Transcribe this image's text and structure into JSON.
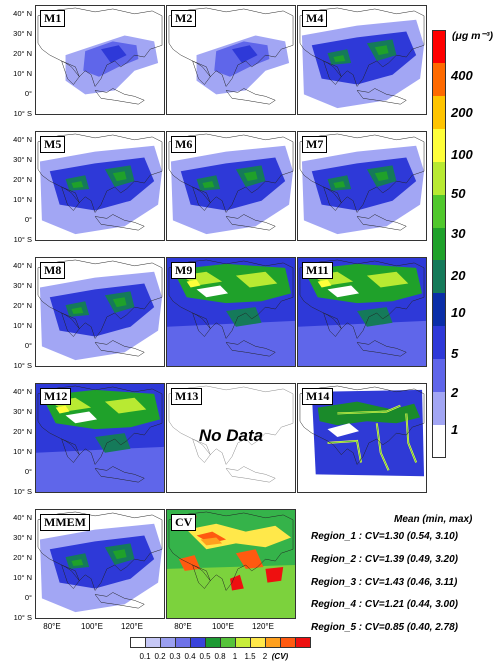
{
  "lat_labels": [
    "40° N",
    "30° N",
    "20° N",
    "10° N",
    "0°",
    "10° S"
  ],
  "lon_labels": [
    "80°E",
    "100°E",
    "120°E"
  ],
  "panels": [
    {
      "label": "M1",
      "style": "low"
    },
    {
      "label": "M2",
      "style": "low"
    },
    {
      "label": "M4",
      "style": "mid"
    },
    {
      "label": "M5",
      "style": "mid"
    },
    {
      "label": "M6",
      "style": "mid"
    },
    {
      "label": "M7",
      "style": "mid"
    },
    {
      "label": "M8",
      "style": "mid"
    },
    {
      "label": "M9",
      "style": "high"
    },
    {
      "label": "M11",
      "style": "high"
    },
    {
      "label": "M12",
      "style": "high"
    },
    {
      "label": "M13",
      "style": "none",
      "note": "No Data"
    },
    {
      "label": "M14",
      "style": "domain"
    },
    {
      "label": "MMEM",
      "style": "mid"
    },
    {
      "label": "CV",
      "style": "cv"
    }
  ],
  "colorbar": {
    "unit": "(μg m⁻³)",
    "labels": [
      "400",
      "200",
      "100",
      "50",
      "30",
      "20",
      "10",
      "5",
      "2",
      "1"
    ],
    "colors": [
      "#ff0000",
      "#ff6a00",
      "#ffc400",
      "#ffff3a",
      "#b8ea32",
      "#50c82c",
      "#1fa12a",
      "#157a5a",
      "#0a2ea8",
      "#2e39d8",
      "#5f66ea",
      "#a2a6f4",
      "#ffffff"
    ]
  },
  "cv_colorbar": {
    "ticks": [
      "0.1",
      "0.2",
      "0.3",
      "0.4",
      "0.5",
      "0.8",
      "1",
      "1.5",
      "2",
      "(CV)"
    ],
    "colors": [
      "#ffffff",
      "#c6c8f6",
      "#9a9ff0",
      "#6e72e8",
      "#3a44dc",
      "#1e9a34",
      "#56c43a",
      "#c8ee3a",
      "#ffe84a",
      "#ffa01e",
      "#ff5a10",
      "#ee1010"
    ]
  },
  "stats": {
    "title": "Mean (min, max)",
    "lines": [
      "Region_1 : CV=1.30 (0.54, 3.10)",
      "Region_2 : CV=1.39 (0.49, 3.20)",
      "Region_3 : CV=1.43 (0.46, 3.11)",
      "Region_4 : CV=1.21 (0.44, 3.00)",
      "Region_5 : CV=0.85 (0.40, 2.78)"
    ]
  }
}
